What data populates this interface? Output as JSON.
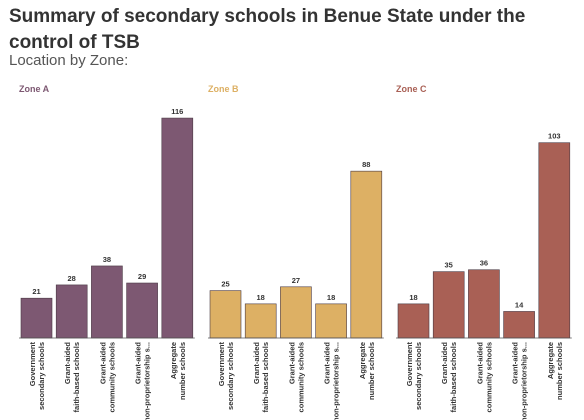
{
  "title": "Summary of secondary schools in Benue State under the control of TSB",
  "subtitle": "Location by Zone:",
  "chart_data": [
    {
      "type": "bar",
      "panel_title": "Zone A",
      "color": "#7d5872",
      "categories": [
        "Government secondary schools",
        "Grant-aided faith-based schools",
        "Grant-aided community schools",
        "Grant-aided non-proprietorship s...",
        "Aggregate number schools"
      ],
      "values": [
        21,
        28,
        38,
        29,
        116
      ],
      "ylim": [
        0,
        125
      ]
    },
    {
      "type": "bar",
      "panel_title": "Zone B",
      "color": "#ddb064",
      "categories": [
        "Government secondary schools",
        "Grant-aided faith-based schools",
        "Grant-aided community schools",
        "Grant-aided non-proprietorship s...",
        "Aggregate number schools"
      ],
      "values": [
        25,
        18,
        27,
        18,
        88
      ],
      "ylim": [
        0,
        125
      ]
    },
    {
      "type": "bar",
      "panel_title": "Zone C",
      "color": "#a96055",
      "categories": [
        "Government secondary schools",
        "Grant-aided faith-based schools",
        "Grant-aided community schools",
        "Grant-aided non-proprietorship s...",
        "Aggregate number schools"
      ],
      "values": [
        18,
        35,
        36,
        14,
        103
      ],
      "ylim": [
        0,
        125
      ]
    }
  ]
}
